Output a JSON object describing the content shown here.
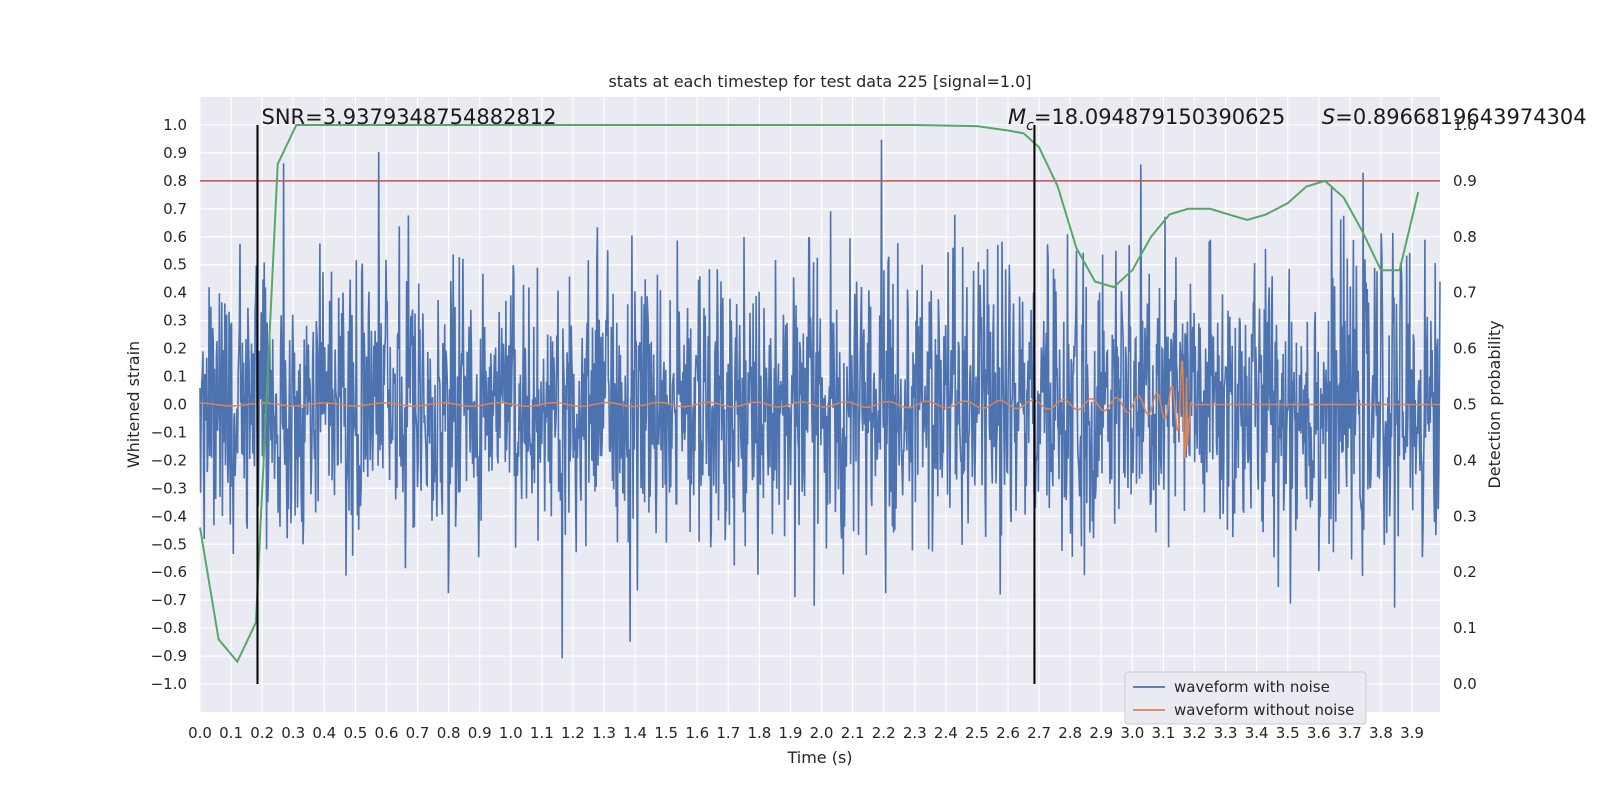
{
  "chart_data": {
    "type": "line",
    "title": "stats at each timestep for test data 225 [signal=1.0]",
    "xlabel": "Time (s)",
    "ylabel_left": "Whitened strain",
    "ylabel_right": "Detection probability",
    "xlim": [
      0.0,
      3.99
    ],
    "ylim_left": [
      -1.1,
      1.1
    ],
    "ylim_right": [
      -0.05,
      1.0
    ],
    "x_ticks": [
      "0.0",
      "0.1",
      "0.2",
      "0.3",
      "0.4",
      "0.5",
      "0.6",
      "0.7",
      "0.8",
      "0.9",
      "1.0",
      "1.1",
      "1.2",
      "1.3",
      "1.4",
      "1.5",
      "1.6",
      "1.7",
      "1.8",
      "1.9",
      "2.0",
      "2.1",
      "2.2",
      "2.3",
      "2.4",
      "2.5",
      "2.6",
      "2.7",
      "2.8",
      "2.9",
      "3.0",
      "3.1",
      "3.2",
      "3.3",
      "3.4",
      "3.5",
      "3.6",
      "3.7",
      "3.8",
      "3.9"
    ],
    "y_ticks_left": [
      "1.0",
      "0.9",
      "0.8",
      "0.7",
      "0.6",
      "0.5",
      "0.4",
      "0.3",
      "0.2",
      "0.1",
      "0.0",
      "−0.1",
      "−0.2",
      "−0.3",
      "−0.4",
      "−0.5",
      "−0.6",
      "−0.7",
      "−0.8",
      "−0.9",
      "−1.0"
    ],
    "y_ticks_right": [
      "1.0",
      "0.9",
      "0.8",
      "0.7",
      "0.6",
      "0.5",
      "0.4",
      "0.3",
      "0.2",
      "0.1",
      "0.0"
    ],
    "grid": true,
    "legend_position": "lower-right",
    "series": [
      {
        "name": "waveform with noise",
        "axis": "left",
        "color": "#4c72b0",
        "description_values": "white Gaussian-like noise, amplitude mostly within ±0.6, peaks near ±1.0",
        "amplitude_sigma": 0.26,
        "sample_count": 2048
      },
      {
        "name": "waveform without noise",
        "axis": "left",
        "color": "#dd8452",
        "chirp": {
          "start_time": 0.0,
          "merger_time": 3.17,
          "start_amplitude": 0.005,
          "peak_amplitude": 0.19,
          "post_merger_min": -0.21
        }
      },
      {
        "name": "",
        "axis": "right",
        "color": "#55a868",
        "x": [
          0.0,
          0.06,
          0.12,
          0.18,
          0.25,
          0.31,
          0.5,
          1.0,
          1.5,
          2.0,
          2.3,
          2.5,
          2.6,
          2.65,
          2.68,
          2.7,
          2.76,
          2.82,
          2.88,
          2.94,
          3.0,
          3.06,
          3.12,
          3.18,
          3.25,
          3.31,
          3.37,
          3.43,
          3.5,
          3.56,
          3.62,
          3.68,
          3.74,
          3.8,
          3.86,
          3.92
        ],
        "y": [
          0.28,
          0.08,
          0.04,
          0.11,
          0.93,
          1.0,
          1.0,
          1.0,
          1.0,
          1.0,
          1.0,
          0.998,
          0.99,
          0.985,
          0.97,
          0.96,
          0.89,
          0.78,
          0.72,
          0.71,
          0.74,
          0.8,
          0.84,
          0.85,
          0.85,
          0.84,
          0.83,
          0.84,
          0.86,
          0.89,
          0.9,
          0.87,
          0.81,
          0.74,
          0.74,
          0.88
        ]
      }
    ],
    "threshold_line": {
      "axis": "right",
      "value": 0.9,
      "color": "#c44e52"
    },
    "vertical_lines": [
      {
        "x": 0.185,
        "color": "#000000"
      },
      {
        "x": 2.685,
        "color": "#000000"
      }
    ],
    "annotations": {
      "snr": "SNR=3.9379348754882812",
      "mc_symbol": "M",
      "mc_sub": "c",
      "mc_value": "=18.094879150390625",
      "s_symbol": "S",
      "s_value": "=0.8966819643974304"
    },
    "legend": [
      {
        "label": "waveform with noise",
        "color": "#4c72b0"
      },
      {
        "label": "waveform without noise",
        "color": "#dd8452"
      }
    ]
  }
}
